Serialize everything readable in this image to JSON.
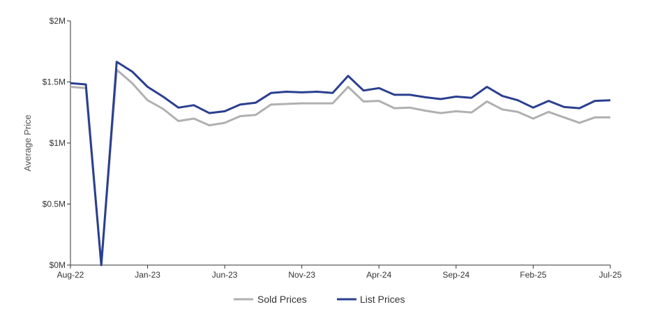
{
  "chart_data": {
    "type": "line",
    "title": "",
    "xlabel": "",
    "ylabel": "Average Price",
    "ylim": [
      0,
      2000000
    ],
    "y_ticks": [
      {
        "value": 0,
        "label": "$0M"
      },
      {
        "value": 500000,
        "label": "$0.5M"
      },
      {
        "value": 1000000,
        "label": "$1M"
      },
      {
        "value": 1500000,
        "label": "$1.5M"
      },
      {
        "value": 2000000,
        "label": "$2M"
      }
    ],
    "x": [
      "Aug-22",
      "Sep-22",
      "Oct-22",
      "Nov-22",
      "Dec-22",
      "Jan-23",
      "Feb-23",
      "Mar-23",
      "Apr-23",
      "May-23",
      "Jun-23",
      "Jul-23",
      "Aug-23",
      "Sep-23",
      "Oct-23",
      "Nov-23",
      "Dec-23",
      "Jan-24",
      "Feb-24",
      "Mar-24",
      "Apr-24",
      "May-24",
      "Jun-24",
      "Jul-24",
      "Aug-24",
      "Sep-24",
      "Oct-24",
      "Nov-24",
      "Dec-24",
      "Jan-25",
      "Feb-25",
      "Mar-25",
      "Apr-25",
      "May-25",
      "Jun-25",
      "Jul-25"
    ],
    "x_tick_labels": [
      "Aug-22",
      "Jan-23",
      "Jun-23",
      "Nov-23",
      "Apr-24",
      "Sep-24",
      "Feb-25",
      "Jul-25"
    ],
    "series": [
      {
        "name": "Sold Prices",
        "color": "#b0b0b0",
        "values": [
          1460000,
          1450000,
          0,
          1600000,
          1490000,
          1350000,
          1280000,
          1180000,
          1200000,
          1145000,
          1165000,
          1220000,
          1230000,
          1315000,
          1320000,
          1325000,
          1325000,
          1325000,
          1460000,
          1340000,
          1345000,
          1285000,
          1290000,
          1265000,
          1245000,
          1260000,
          1250000,
          1340000,
          1275000,
          1255000,
          1200000,
          1255000,
          1210000,
          1165000,
          1210000,
          1210000
        ]
      },
      {
        "name": "List Prices",
        "color": "#2a3f8f",
        "values": [
          1490000,
          1480000,
          0,
          1665000,
          1585000,
          1460000,
          1380000,
          1290000,
          1310000,
          1245000,
          1260000,
          1315000,
          1330000,
          1410000,
          1420000,
          1415000,
          1420000,
          1410000,
          1550000,
          1430000,
          1450000,
          1395000,
          1395000,
          1375000,
          1360000,
          1380000,
          1370000,
          1460000,
          1385000,
          1350000,
          1290000,
          1345000,
          1295000,
          1285000,
          1345000,
          1350000
        ]
      }
    ],
    "legend_position": "bottom-center",
    "grid": false
  }
}
